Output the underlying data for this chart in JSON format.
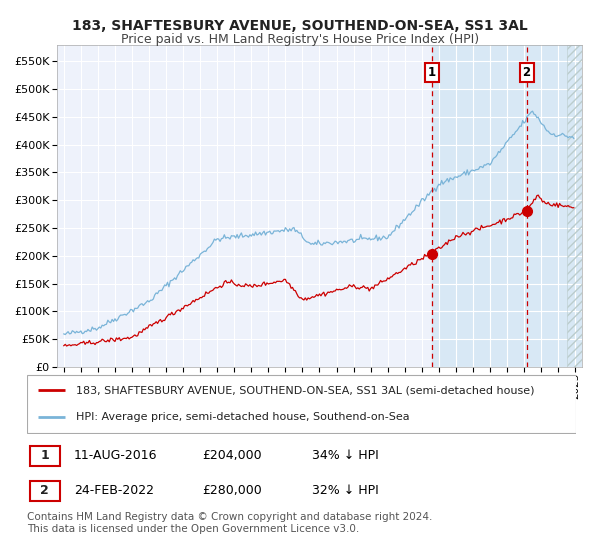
{
  "title": "183, SHAFTESBURY AVENUE, SOUTHEND-ON-SEA, SS1 3AL",
  "subtitle": "Price paid vs. HM Land Registry's House Price Index (HPI)",
  "ylim": [
    0,
    580000
  ],
  "yticks": [
    0,
    50000,
    100000,
    150000,
    200000,
    250000,
    300000,
    350000,
    400000,
    450000,
    500000,
    550000
  ],
  "ytick_labels": [
    "£0",
    "£50K",
    "£100K",
    "£150K",
    "£200K",
    "£250K",
    "£300K",
    "£350K",
    "£400K",
    "£450K",
    "£500K",
    "£550K"
  ],
  "background_color": "#ffffff",
  "plot_bg_color": "#eef2fb",
  "shaded_bg_color": "#d8e8f5",
  "grid_color": "#ffffff",
  "hpi_color": "#7ab4d8",
  "price_color": "#cc0000",
  "marker_color": "#cc0000",
  "dashed_line1_color": "#cc0000",
  "dashed_line2_color": "#cc0000",
  "point1_date_num": 2016.61,
  "point1_price": 204000,
  "point1_label": "1",
  "point2_date_num": 2022.15,
  "point2_price": 280000,
  "point2_label": "2",
  "legend_line1": "183, SHAFTESBURY AVENUE, SOUTHEND-ON-SEA, SS1 3AL (semi-detached house)",
  "legend_line2": "HPI: Average price, semi-detached house, Southend-on-Sea",
  "table_row1": [
    "1",
    "11-AUG-2016",
    "£204,000",
    "34% ↓ HPI"
  ],
  "table_row2": [
    "2",
    "24-FEB-2022",
    "£280,000",
    "32% ↓ HPI"
  ],
  "footnote": "Contains HM Land Registry data © Crown copyright and database right 2024.\nThis data is licensed under the Open Government Licence v3.0.",
  "title_fontsize": 10,
  "subtitle_fontsize": 9,
  "tick_fontsize": 8,
  "legend_fontsize": 8,
  "table_fontsize": 9,
  "footnote_fontsize": 7.5
}
